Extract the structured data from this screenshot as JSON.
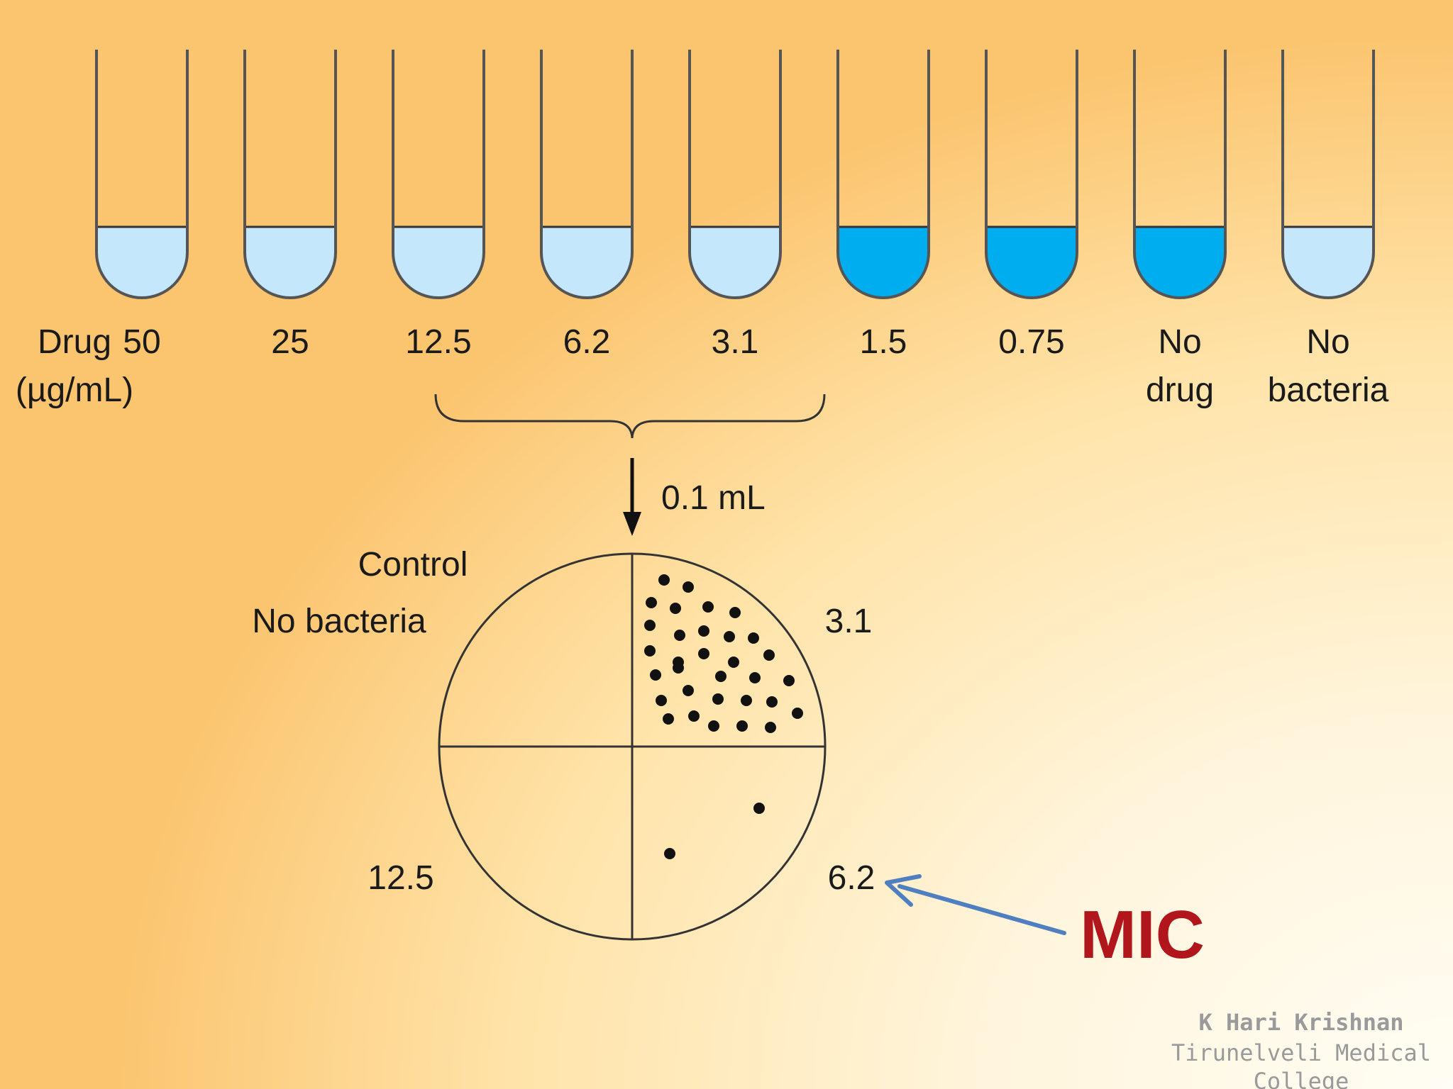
{
  "axis_label": [
    "Drug",
    "(µg/mL)"
  ],
  "tubes": [
    {
      "label": [
        "50"
      ],
      "turbid": false
    },
    {
      "label": [
        "25"
      ],
      "turbid": false
    },
    {
      "label": [
        "12.5"
      ],
      "turbid": false
    },
    {
      "label": [
        "6.2"
      ],
      "turbid": false
    },
    {
      "label": [
        "3.1"
      ],
      "turbid": false
    },
    {
      "label": [
        "1.5"
      ],
      "turbid": true
    },
    {
      "label": [
        "0.75"
      ],
      "turbid": true
    },
    {
      "label": [
        "No",
        "drug"
      ],
      "turbid": true
    },
    {
      "label": [
        "No",
        "bacteria"
      ],
      "turbid": false
    }
  ],
  "colors": {
    "clear_broth": "#c5e7fb",
    "turbid_broth": "#00aeef",
    "mic_text": "#b0161c",
    "mic_arrow": "#4f7fc0"
  },
  "transfer_volume": "0.1 mL",
  "plate": {
    "control_label": [
      "Control",
      "No bacteria"
    ],
    "quadrants": {
      "top_right": "3.1",
      "bottom_right": "6.2",
      "bottom_left": "12.5"
    }
  },
  "mic_label": "MIC",
  "credit": [
    "K Hari Krishnan",
    "Tirunelveli Medical",
    "College"
  ]
}
